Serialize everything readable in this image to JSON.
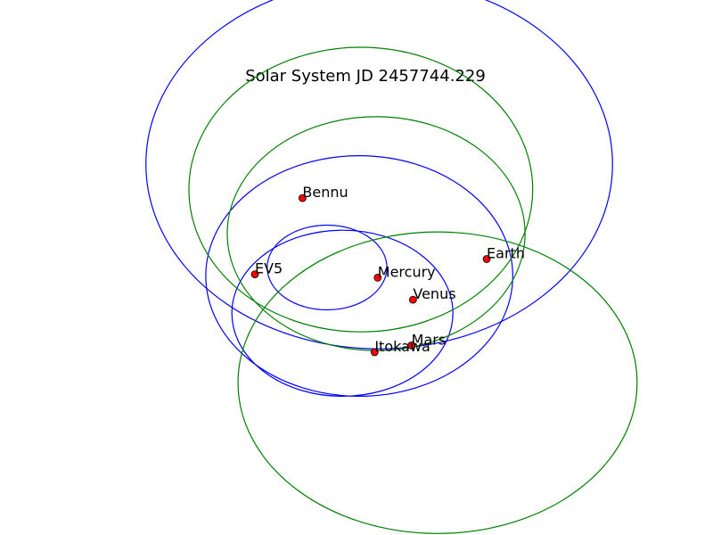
{
  "chart_data": {
    "type": "scatter",
    "title": "Solar System JD 2457744.229",
    "xlabel": "",
    "ylabel": "",
    "grid": false,
    "axes_visible": false,
    "colors": {
      "planet_orbit": "#0000ff",
      "asteroid_orbit": "#008000",
      "marker_fill": "#ff0000",
      "marker_edge": "#000000"
    },
    "orbits": [
      {
        "name": "Mercury",
        "kind": "planet",
        "cx": -0.05,
        "cy": 0.0,
        "rx": 0.39,
        "ry": 0.25
      },
      {
        "name": "Venus",
        "kind": "planet",
        "cx": 0.05,
        "cy": -0.27,
        "rx": 0.72,
        "ry": 0.49
      },
      {
        "name": "Earth",
        "kind": "planet",
        "cx": 0.16,
        "cy": -0.05,
        "rx": 1.0,
        "ry": 0.71
      },
      {
        "name": "Mars",
        "kind": "planet",
        "cx": 0.29,
        "cy": 0.61,
        "rx": 1.52,
        "ry": 1.09
      },
      {
        "name": "Bennu",
        "kind": "asteroid",
        "cx": 0.17,
        "cy": 0.46,
        "rx": 1.12,
        "ry": 0.84
      },
      {
        "name": "EV5",
        "kind": "asteroid",
        "cx": 0.27,
        "cy": 0.2,
        "rx": 0.97,
        "ry": 0.69
      },
      {
        "name": "Itokawa",
        "kind": "asteroid",
        "cx": 0.67,
        "cy": -0.68,
        "rx": 1.3,
        "ry": 0.89
      }
    ],
    "bodies": [
      {
        "name": "Mercury",
        "x": 0.28,
        "y": -0.06
      },
      {
        "name": "Venus",
        "x": 0.51,
        "y": -0.19
      },
      {
        "name": "Earth",
        "x": 0.99,
        "y": 0.05
      },
      {
        "name": "Mars",
        "x": 0.5,
        "y": -0.46
      },
      {
        "name": "Bennu",
        "x": -0.21,
        "y": 0.41
      },
      {
        "name": "EV5",
        "x": -0.52,
        "y": -0.04
      },
      {
        "name": "Itokawa",
        "x": 0.26,
        "y": -0.5
      }
    ],
    "xlim": [
      -1.6,
      2.0
    ],
    "ylim": [
      -1.2,
      1.2
    ]
  }
}
